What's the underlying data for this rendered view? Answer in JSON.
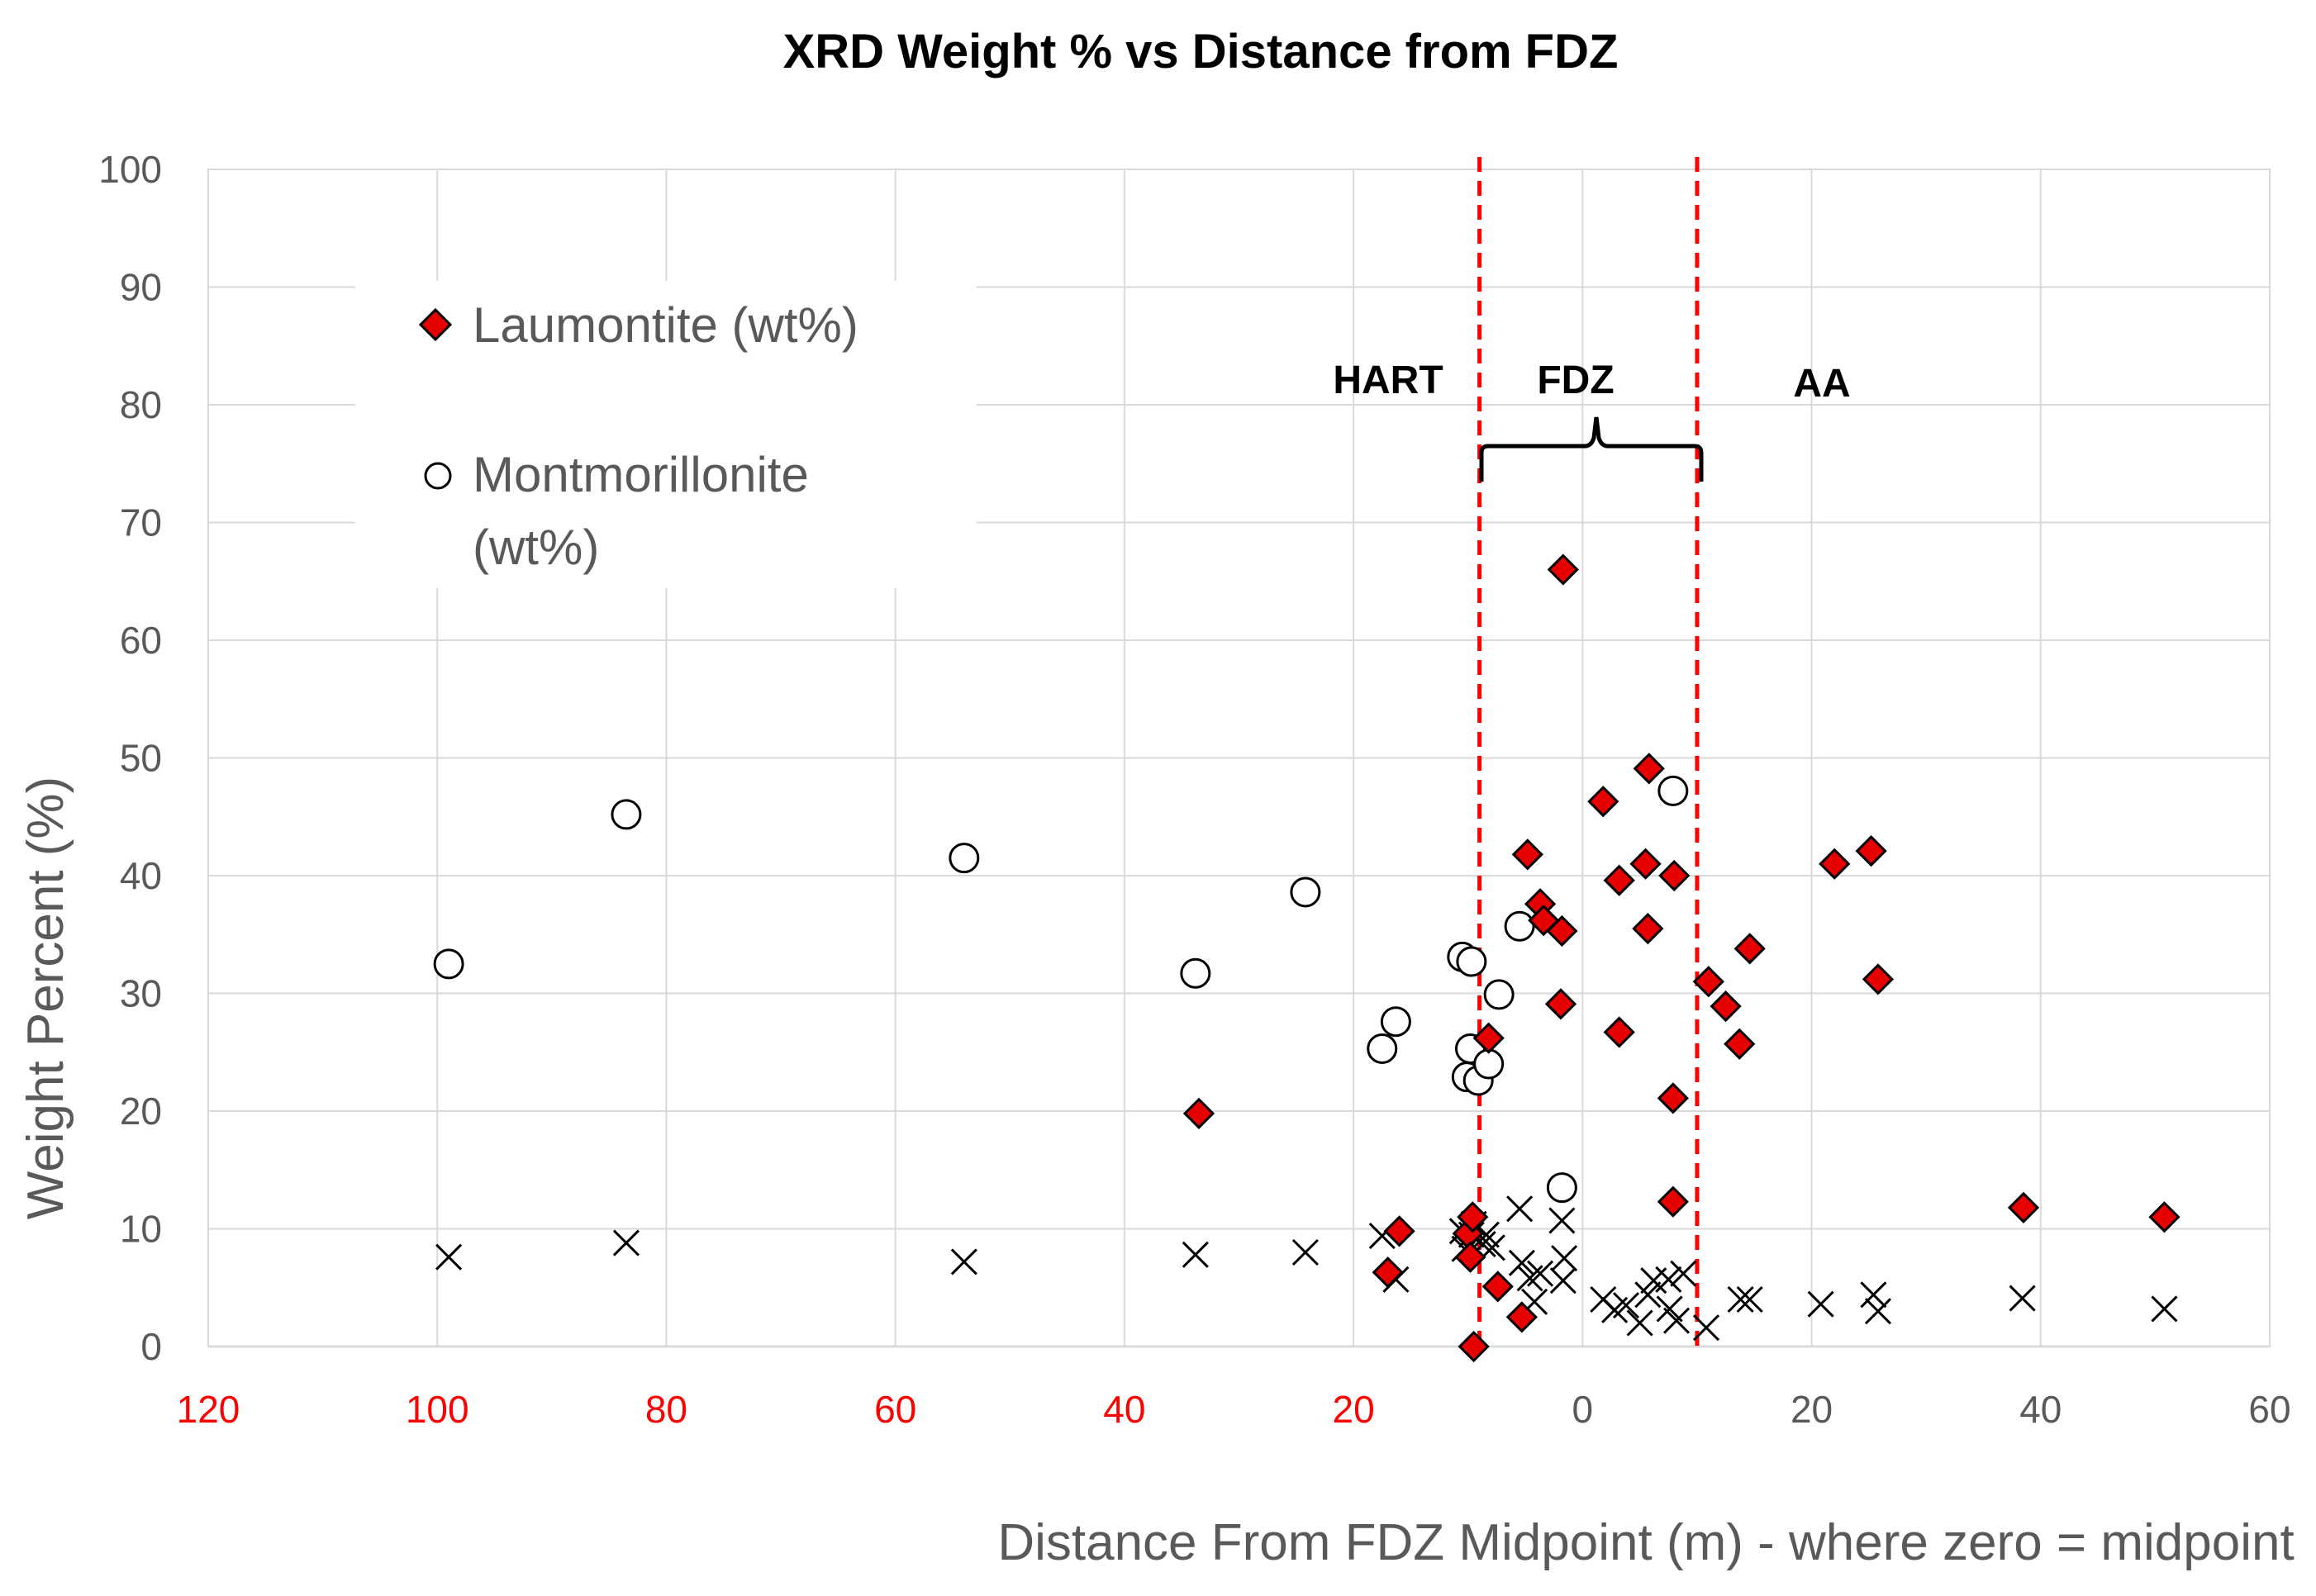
{
  "chart_data": {
    "type": "scatter",
    "title": "XRD Weight % vs Distance from FDZ",
    "xlabel": "Distance From FDZ Midpoint (m) - where zero = midpoint",
    "ylabel": "Weight Percent (%)",
    "xlim": [
      -120,
      60
    ],
    "ylim": [
      0,
      100
    ],
    "x_ticks": [
      -120,
      -100,
      -80,
      -60,
      -40,
      -20,
      0,
      20,
      40,
      60
    ],
    "x_tick_labels": [
      "120",
      "100",
      "80",
      "60",
      "40",
      "20",
      "0",
      "20",
      "40",
      "60"
    ],
    "x_tick_colors": [
      "#ff0000",
      "#ff0000",
      "#ff0000",
      "#ff0000",
      "#ff0000",
      "#ff0000",
      "#595959",
      "#595959",
      "#595959",
      "#595959"
    ],
    "y_ticks": [
      0,
      10,
      20,
      30,
      40,
      50,
      60,
      70,
      80,
      90,
      100
    ],
    "y_tick_labels": [
      "0",
      "10",
      "20",
      "30",
      "40",
      "50",
      "60",
      "70",
      "80",
      "90",
      "100"
    ],
    "grid": true,
    "legend_position": "upper-left",
    "series": [
      {
        "name": "Laumontite (wt%)",
        "marker": "diamond",
        "color": "#e60000",
        "points": [
          [
            -9.5,
            0
          ],
          [
            -33.5,
            19.8
          ],
          [
            -16,
            9.8
          ],
          [
            -17,
            6.3
          ],
          [
            -10,
            9.6
          ],
          [
            -9.6,
            11
          ],
          [
            -9.8,
            7.6
          ],
          [
            -8.2,
            26.2
          ],
          [
            -7.4,
            5.1
          ],
          [
            -5.3,
            2.5
          ],
          [
            -4.8,
            41.8
          ],
          [
            -3.7,
            37.6
          ],
          [
            -3.4,
            36.2
          ],
          [
            -1.8,
            35.3
          ],
          [
            -1.9,
            29.1
          ],
          [
            -1.7,
            66
          ],
          [
            1.8,
            46.3
          ],
          [
            3.2,
            39.6
          ],
          [
            3.2,
            26.7
          ],
          [
            5.5,
            41
          ],
          [
            5.8,
            49.1
          ],
          [
            5.7,
            35.5
          ],
          [
            8,
            40
          ],
          [
            7.9,
            21.1
          ],
          [
            7.9,
            12.3
          ],
          [
            11,
            31
          ],
          [
            12.5,
            28.9
          ],
          [
            13.7,
            25.7
          ],
          [
            14.6,
            33.8
          ],
          [
            22,
            41
          ],
          [
            25.2,
            42.1
          ],
          [
            25.8,
            31.2
          ],
          [
            38.5,
            11.8
          ],
          [
            50.8,
            11
          ]
        ]
      },
      {
        "name": "Montmorillonite (wt%)",
        "marker": "circle",
        "color": "#ffffff",
        "points": [
          [
            -99,
            32.5
          ],
          [
            -83.5,
            45.2
          ],
          [
            -54,
            41.5
          ],
          [
            -33.8,
            31.7
          ],
          [
            -24.2,
            38.6
          ],
          [
            -17.5,
            25.3
          ],
          [
            -16.3,
            27.6
          ],
          [
            -10.5,
            33.1
          ],
          [
            -9.7,
            32.7
          ],
          [
            -10.1,
            22.9
          ],
          [
            -9.8,
            25.3
          ],
          [
            -9.1,
            22.6
          ],
          [
            -8.2,
            24
          ],
          [
            -7.3,
            29.9
          ],
          [
            -5.5,
            35.7
          ],
          [
            -1.8,
            13.5
          ],
          [
            7.9,
            47.2
          ]
        ]
      },
      {
        "name": "",
        "marker": "x",
        "color": "#000000",
        "points": [
          [
            -99,
            7.6
          ],
          [
            -83.5,
            8.8
          ],
          [
            -54,
            7.2
          ],
          [
            -33.8,
            7.8
          ],
          [
            -24.2,
            8
          ],
          [
            -17.5,
            9.4
          ],
          [
            -16.3,
            5.7
          ],
          [
            -10.5,
            9.8
          ],
          [
            -10.3,
            8.3
          ],
          [
            -9.7,
            9.5
          ],
          [
            -9.5,
            10.4
          ],
          [
            -8.7,
            8.7
          ],
          [
            -8.4,
            9.5
          ],
          [
            -7.9,
            8.4
          ],
          [
            -5.5,
            11.7
          ],
          [
            -5.3,
            7.1
          ],
          [
            -4.6,
            5.8
          ],
          [
            -4.2,
            3.8
          ],
          [
            -3.7,
            6.2
          ],
          [
            -1.8,
            10.7
          ],
          [
            -1.6,
            7.5
          ],
          [
            -1.7,
            5.6
          ],
          [
            1.8,
            4
          ],
          [
            2.8,
            3.1
          ],
          [
            3.8,
            3.5
          ],
          [
            5,
            2
          ],
          [
            5.7,
            4.4
          ],
          [
            6.2,
            5.6
          ],
          [
            7.5,
            5.7
          ],
          [
            7.6,
            3.2
          ],
          [
            8.2,
            2.2
          ],
          [
            8.8,
            6.2
          ],
          [
            10.8,
            1.6
          ],
          [
            13.8,
            4
          ],
          [
            14.6,
            4
          ],
          [
            20.8,
            3.6
          ],
          [
            25.4,
            4.4
          ],
          [
            25.8,
            3
          ],
          [
            38.4,
            4.1
          ],
          [
            50.8,
            3.2
          ]
        ]
      }
    ],
    "reference_lines": [
      {
        "x": -9,
        "style": "dashed",
        "color": "#ff0000"
      },
      {
        "x": 10,
        "style": "dashed",
        "color": "#ff0000"
      }
    ],
    "region_labels": [
      "HART",
      "FDZ",
      "AA"
    ]
  }
}
